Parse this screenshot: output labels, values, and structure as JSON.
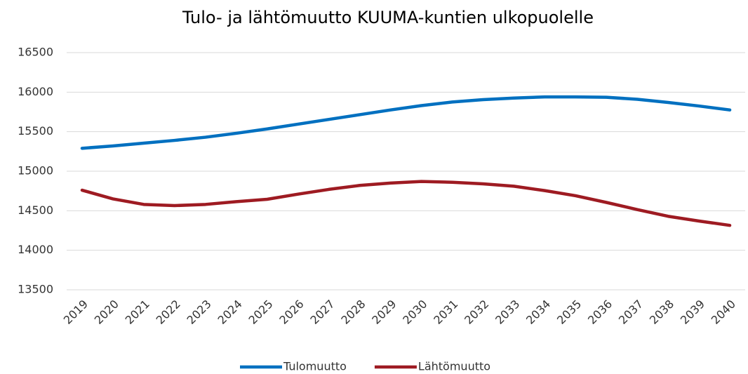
{
  "chart_data": {
    "type": "line",
    "title": "Tulo- ja lähtömuutto KUUMA-kuntien ulkopuolelle",
    "categories": [
      "2019",
      "2020",
      "2021",
      "2022",
      "2023",
      "2024",
      "2025",
      "2026",
      "2027",
      "2028",
      "2029",
      "2030",
      "2031",
      "2032",
      "2033",
      "2034",
      "2035",
      "2036",
      "2037",
      "2038",
      "2039",
      "2040"
    ],
    "series": [
      {
        "name": "Tulomuutto",
        "color": "#0070c0",
        "values": [
          15290,
          15320,
          15355,
          15390,
          15430,
          15480,
          15535,
          15595,
          15655,
          15715,
          15775,
          15830,
          15875,
          15905,
          15925,
          15940,
          15940,
          15935,
          15910,
          15870,
          15825,
          15775
        ]
      },
      {
        "name": "Lähtömuutto",
        "color": "#9e1b22",
        "values": [
          14760,
          14650,
          14580,
          14565,
          14580,
          14615,
          14645,
          14710,
          14770,
          14820,
          14850,
          14870,
          14860,
          14840,
          14810,
          14755,
          14690,
          14605,
          14515,
          14430,
          14370,
          14315
        ]
      }
    ],
    "ylim": [
      13500,
      16500
    ],
    "yticks": [
      13500,
      14000,
      14500,
      15000,
      15500,
      16000,
      16500
    ],
    "grid": true,
    "legend": "bottom"
  }
}
